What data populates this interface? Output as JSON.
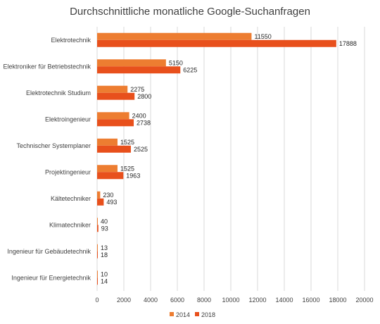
{
  "chart_data": {
    "type": "bar",
    "orientation": "horizontal",
    "title": "Durchschnittliche monatliche Google-Suchanfragen",
    "categories": [
      "Elektrotechnik",
      "Elektroniker für Betriebstechnik",
      "Elektrotechnik Studium",
      "Elektroingenieur",
      "Technischer Systemplaner",
      "Projektingenieur",
      "Kältetechniker",
      "Klimatechniker",
      "Ingenieur für Gebäudetechnik",
      "Ingenieur für Energietechnik"
    ],
    "series": [
      {
        "name": "2014",
        "color": "#ed7d31",
        "values": [
          11550,
          5150,
          2275,
          2400,
          1525,
          1525,
          230,
          40,
          13,
          10
        ]
      },
      {
        "name": "2018",
        "color": "#e8501c",
        "values": [
          17888,
          6225,
          2800,
          2738,
          2525,
          1963,
          493,
          93,
          18,
          14
        ]
      }
    ],
    "xlim": [
      0,
      20000
    ],
    "x_ticks": [
      "0",
      "2000",
      "4000",
      "6000",
      "8000",
      "10000",
      "12000",
      "14000",
      "16000",
      "18000",
      "20000"
    ],
    "x_tick_values": [
      0,
      2000,
      4000,
      6000,
      8000,
      10000,
      12000,
      14000,
      16000,
      18000,
      20000
    ],
    "grid": true,
    "legend": "bottom"
  }
}
